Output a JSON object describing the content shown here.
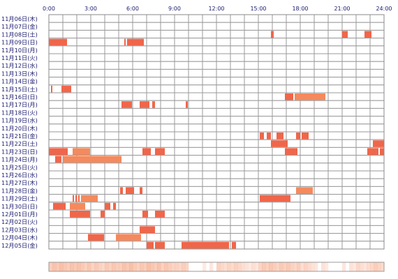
{
  "chart_data": {
    "type": "heatmap",
    "title": "",
    "xlabel": "",
    "ylabel": "",
    "x_ticks": [
      "0:00",
      "3:00",
      "6:00",
      "9:00",
      "12:00",
      "15:00",
      "18:00",
      "21:00",
      "24:00"
    ],
    "x_range_hours": [
      0,
      24
    ],
    "hour_columns": 24,
    "grid": true,
    "bar_color": "#f0664a",
    "bar_color_light": "#f48a5e",
    "rows": [
      {
        "label": "11月06日(木)",
        "segments": []
      },
      {
        "label": "11月07日(金)",
        "segments": []
      },
      {
        "label": "11月08日(土)",
        "segments": [
          [
            15.9,
            16.1
          ],
          [
            21.0,
            21.4
          ],
          [
            22.6,
            23.1
          ]
        ]
      },
      {
        "label": "11月09日(日)",
        "segments": [
          [
            0.0,
            1.3
          ],
          [
            5.4,
            5.5
          ],
          [
            5.6,
            6.8
          ]
        ]
      },
      {
        "label": "11月10日(月)",
        "segments": []
      },
      {
        "label": "11月11日(火)",
        "segments": []
      },
      {
        "label": "11月12日(水)",
        "segments": []
      },
      {
        "label": "11月13日(木)",
        "segments": []
      },
      {
        "label": "11月14日(金)",
        "segments": []
      },
      {
        "label": "11月15日(土)",
        "segments": [
          [
            0.15,
            0.25
          ],
          [
            0.9,
            1.6
          ]
        ]
      },
      {
        "label": "11月16日(日)",
        "segments": [
          [
            16.9,
            17.5
          ],
          [
            17.6,
            19.8
          ]
        ]
      },
      {
        "label": "11月17日(月)",
        "segments": [
          [
            5.2,
            5.95
          ],
          [
            6.5,
            7.2
          ],
          [
            7.4,
            7.6
          ],
          [
            9.8,
            9.95
          ]
        ]
      },
      {
        "label": "11月18日(火)",
        "segments": []
      },
      {
        "label": "11月19日(水)",
        "segments": []
      },
      {
        "label": "11月20日(木)",
        "segments": []
      },
      {
        "label": "11月21日(金)",
        "segments": [
          [
            15.1,
            15.4
          ],
          [
            15.6,
            15.9
          ],
          [
            16.3,
            16.8
          ],
          [
            17.7,
            18.0
          ],
          [
            18.1,
            18.6
          ]
        ]
      },
      {
        "label": "11月22日(土)",
        "segments": [
          [
            15.9,
            17.1
          ],
          [
            23.2,
            24.0
          ]
        ]
      },
      {
        "label": "11月23日(日)",
        "segments": [
          [
            0.0,
            1.35
          ],
          [
            1.7,
            2.95
          ],
          [
            6.7,
            7.3
          ],
          [
            7.6,
            8.3
          ],
          [
            16.9,
            17.8
          ],
          [
            22.8,
            23.6
          ],
          [
            23.7,
            24.0
          ]
        ]
      },
      {
        "label": "11月24日(月)",
        "segments": [
          [
            0.45,
            0.9
          ],
          [
            1.0,
            5.2
          ]
        ]
      },
      {
        "label": "11月25日(火)",
        "segments": []
      },
      {
        "label": "11月26日(水)",
        "segments": []
      },
      {
        "label": "11月27日(木)",
        "segments": []
      },
      {
        "label": "11月28日(金)",
        "segments": [
          [
            5.1,
            5.3
          ],
          [
            5.5,
            6.1
          ],
          [
            6.5,
            6.7
          ],
          [
            17.7,
            18.9
          ]
        ]
      },
      {
        "label": "11月29日(土)",
        "segments": [
          [
            1.7,
            1.8
          ],
          [
            1.9,
            2.0
          ],
          [
            2.1,
            2.2
          ],
          [
            2.3,
            3.5
          ],
          [
            15.1,
            17.3
          ]
        ]
      },
      {
        "label": "11月30日(日)",
        "segments": [
          [
            0.3,
            1.2
          ],
          [
            1.5,
            2.6
          ],
          [
            4.0,
            4.4
          ],
          [
            4.6,
            4.8
          ]
        ]
      },
      {
        "label": "12月01日(月)",
        "segments": [
          [
            1.5,
            2.95
          ],
          [
            3.7,
            4.0
          ],
          [
            6.7,
            7.1
          ],
          [
            7.6,
            8.3
          ]
        ]
      },
      {
        "label": "12月02日(火)",
        "segments": []
      },
      {
        "label": "12月03日(水)",
        "segments": [
          [
            6.5,
            7.6
          ]
        ]
      },
      {
        "label": "12月04日(木)",
        "segments": [
          [
            2.8,
            3.95
          ],
          [
            4.8,
            6.6
          ]
        ]
      },
      {
        "label": "12月05日(金)",
        "segments": [
          [
            7.0,
            7.5
          ],
          [
            7.6,
            8.3
          ],
          [
            9.5,
            12.9
          ],
          [
            13.1,
            13.4
          ]
        ]
      }
    ],
    "summary_strip": {
      "description_hours_density": [
        0.55,
        0.55,
        0.5,
        0.4,
        0.45,
        0.55,
        0.5,
        0.55,
        0.45,
        0.35,
        0.0,
        0.05,
        0.3,
        0.3,
        0.1,
        0.45,
        0.45,
        0.4,
        0.25,
        0.05,
        0.0,
        0.1,
        0.2,
        0.35
      ]
    }
  }
}
